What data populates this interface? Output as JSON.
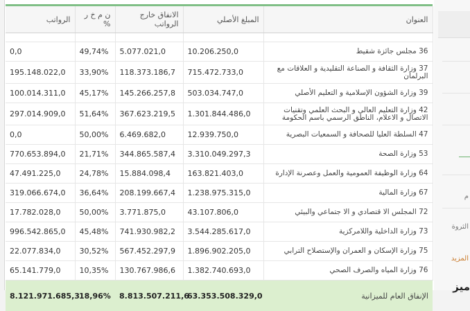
{
  "table": {
    "headers": {
      "title": "العنوان",
      "original_amount": "المبلغ الأصلي",
      "external_spending": "الانفاق خارج الرواتب",
      "pct": "ن م خ ر %",
      "salaries": "الرواتب"
    },
    "rows": [
      {
        "title": "36 مجلس جائزة شقيط",
        "original": "10.206.250,0",
        "external": "5.077.021,0",
        "pct": "49,74%",
        "salaries": "0,0"
      },
      {
        "title": "37 وزارة الثقافة و الصناعة التقليدية و العلاقات مع البرلمان",
        "original": "715.472.733,0",
        "external": "118.373.186,7",
        "pct": "33,90%",
        "salaries": "195.148.022,0"
      },
      {
        "title": "39 وزارة الشؤون الإسلامية و التعليم الأصلي",
        "original": "503.034.747,0",
        "external": "145.266.257,8",
        "pct": "45,17%",
        "salaries": "100.014.311,0"
      },
      {
        "title": "42 وزارة التعليم العالي و البحث العلمي وتقنيات الاتصال و الاعلام، الناطق الرسمي باسم الحكومة",
        "original": "1.301.844.486,0",
        "external": "367.623.219,5",
        "pct": "51,64%",
        "salaries": "297.014.909,0"
      },
      {
        "title": "47 السلطة العليا للصحافة و السمعيات البصرية",
        "original": "12.939.750,0",
        "external": "6.469.682,0",
        "pct": "50,00%",
        "salaries": "0,0"
      },
      {
        "title": "53 وزارة الصحة",
        "original": "3.310.049.297,3",
        "external": "344.865.587,4",
        "pct": "21,71%",
        "salaries": "770.653.894,0"
      },
      {
        "title": "64 وزارة الوظيفة العمومية والعمل وعصرنة الإدارة",
        "original": "163.821.403,0",
        "external": "15.884.098,4",
        "pct": "24,78%",
        "salaries": "47.491.225,0"
      },
      {
        "title": "67 وزارة المالية",
        "original": "1.238.975.315,0",
        "external": "208.199.667,4",
        "pct": "36,64%",
        "salaries": "319.066.674,0"
      },
      {
        "title": "72 المجلس الا قتصادي و الا جتماعي والبيئي",
        "original": "43.107.806,0",
        "external": "3.771.875,0",
        "pct": "50,00%",
        "salaries": "17.782.028,0"
      },
      {
        "title": "73 وزارة الداخلية واللامركزية",
        "original": "3.544.285.617,0",
        "external": "741.930.982,2",
        "pct": "45,48%",
        "salaries": "996.542.865,0"
      },
      {
        "title": "75 وزارة الإسكان و العمران والإستصلاح الترابي",
        "original": "1.896.902.205,0",
        "external": "567.452.297,9",
        "pct": "30,52%",
        "salaries": "22.077.834,0"
      },
      {
        "title": "76 وزارة المياه والصرف الصحي",
        "original": "1.382.740.693,0",
        "external": "130.767.986,6",
        "pct": "10,35%",
        "salaries": "65.141.779,0"
      }
    ],
    "footer": {
      "title": "الإنفاق العام للميزانية",
      "original": "63.353.508.329,0",
      "external": "8.813.507.211,6",
      "pct": "18,96%",
      "salaries": "8.121.971.685,3"
    }
  },
  "sidebar": {
    "label_wealth": "الثروة",
    "label_more": "المزيد",
    "label_bottom": "ميز",
    "label_mid": "م"
  },
  "colors": {
    "accent_green": "#7fbf86",
    "footer_bg": "#dcefcf",
    "more_link": "#c97a2a"
  }
}
